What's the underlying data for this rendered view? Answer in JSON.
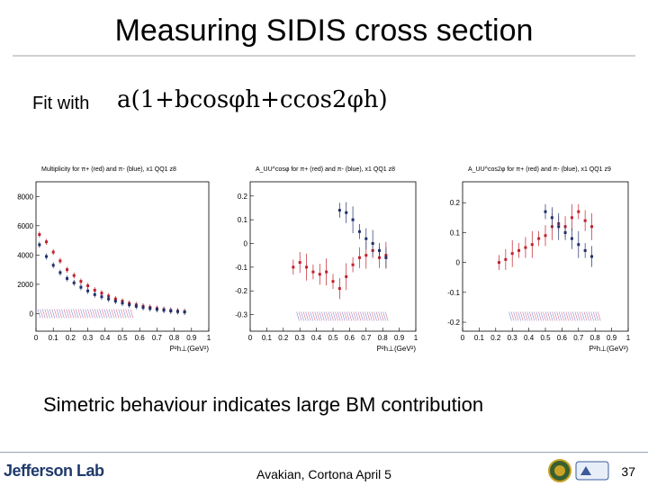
{
  "slide": {
    "title": "Measuring SIDIS cross section",
    "fit_label": "Fit with",
    "fit_formula": "a(1+bcosφh+ccos2φh)",
    "caption": "Simetric behaviour indicates large BM contribution",
    "footer_text": "Avakian, Cortona April 5",
    "logo_text": "Jefferson Lab",
    "page_number": "37"
  },
  "chart_data": [
    {
      "type": "scatter",
      "title": "Multiplicity for π+ (red) and π- (blue), x1 QQ1 z8",
      "xlabel": "P²h⊥(GeV²)",
      "ylabel": "",
      "xlim": [
        0,
        1
      ],
      "ylim": [
        -1200,
        9000
      ],
      "x_ticks": [
        "0",
        "0.1",
        "0.2",
        "0.3",
        "0.4",
        "0.5",
        "0.6",
        "0.7",
        "0.8",
        "0.9",
        "1"
      ],
      "y_ticks": [
        "0",
        "2000",
        "4000",
        "6000",
        "8000"
      ],
      "series": [
        {
          "name": "π+",
          "color": "#c0202c",
          "x": [
            0.02,
            0.06,
            0.1,
            0.14,
            0.18,
            0.22,
            0.26,
            0.3,
            0.34,
            0.38,
            0.42,
            0.46,
            0.5,
            0.54,
            0.58,
            0.62,
            0.66,
            0.7,
            0.74,
            0.78,
            0.82,
            0.86
          ],
          "y": [
            5400,
            4900,
            4200,
            3600,
            3000,
            2600,
            2200,
            1900,
            1600,
            1400,
            1200,
            1000,
            850,
            700,
            600,
            500,
            420,
            350,
            280,
            220,
            170,
            130
          ]
        },
        {
          "name": "π-",
          "color": "#1f2f6a",
          "x": [
            0.02,
            0.06,
            0.1,
            0.14,
            0.18,
            0.22,
            0.26,
            0.3,
            0.34,
            0.38,
            0.42,
            0.46,
            0.5,
            0.54,
            0.58,
            0.62,
            0.66,
            0.7,
            0.74,
            0.78,
            0.82,
            0.86
          ],
          "y": [
            4700,
            3900,
            3300,
            2800,
            2400,
            2100,
            1800,
            1550,
            1300,
            1150,
            1000,
            850,
            720,
            600,
            500,
            420,
            350,
            290,
            230,
            180,
            140,
            110
          ]
        }
      ]
    },
    {
      "type": "scatter",
      "title": "A_UU^cosφ for π+ (red) and π- (blue), x1 QQ1 z8",
      "xlabel": "P²h⊥(GeV²)",
      "ylabel": "",
      "xlim": [
        0,
        1
      ],
      "ylim": [
        -0.37,
        0.26
      ],
      "x_ticks": [
        "0",
        "0.1",
        "0.2",
        "0.3",
        "0.4",
        "0.5",
        "0.6",
        "0.7",
        "0.8",
        "0.9",
        "1"
      ],
      "y_ticks": [
        "-0.3",
        "-0.2",
        "-0.1",
        "0",
        "0.1",
        "0.2"
      ],
      "series": [
        {
          "name": "π+",
          "color": "#c0202c",
          "x": [
            0.26,
            0.3,
            0.34,
            0.38,
            0.42,
            0.46,
            0.5,
            0.54,
            0.58,
            0.62,
            0.66,
            0.7,
            0.74,
            0.78,
            0.82
          ],
          "y": [
            -0.1,
            -0.08,
            -0.1,
            -0.12,
            -0.13,
            -0.12,
            -0.16,
            -0.19,
            -0.14,
            -0.09,
            -0.06,
            -0.05,
            -0.03,
            -0.06,
            -0.05
          ]
        },
        {
          "name": "π-",
          "color": "#1f2f6a",
          "x": [
            0.54,
            0.58,
            0.62,
            0.66,
            0.7,
            0.74,
            0.78,
            0.82
          ],
          "y": [
            0.14,
            0.13,
            0.1,
            0.05,
            0.02,
            0.0,
            -0.03,
            -0.06
          ]
        }
      ]
    },
    {
      "type": "scatter",
      "title": "A_UU^cos2φ for π+ (red) and π- (blue), x1 QQ1 z9",
      "xlabel": "P²h⊥(GeV²)",
      "ylabel": "",
      "xlim": [
        0,
        1
      ],
      "ylim": [
        -0.23,
        0.27
      ],
      "x_ticks": [
        "0",
        "0.1",
        "0.2",
        "0.3",
        "0.4",
        "0.5",
        "0.6",
        "0.7",
        "0.8",
        "0.9",
        "1"
      ],
      "y_ticks": [
        "-0.2",
        "-0.1",
        "0",
        "0.1",
        "0.2"
      ],
      "series": [
        {
          "name": "π+",
          "color": "#c0202c",
          "x": [
            0.22,
            0.26,
            0.3,
            0.34,
            0.38,
            0.42,
            0.46,
            0.5,
            0.54,
            0.58,
            0.62,
            0.66,
            0.7,
            0.74,
            0.78
          ],
          "y": [
            0.0,
            0.01,
            0.03,
            0.04,
            0.05,
            0.06,
            0.08,
            0.09,
            0.12,
            0.13,
            0.12,
            0.15,
            0.17,
            0.14,
            0.12
          ]
        },
        {
          "name": "π-",
          "color": "#1f2f6a",
          "x": [
            0.5,
            0.54,
            0.58,
            0.62,
            0.66,
            0.7,
            0.74,
            0.78
          ],
          "y": [
            0.17,
            0.15,
            0.12,
            0.1,
            0.08,
            0.06,
            0.04,
            0.02
          ]
        }
      ]
    }
  ]
}
